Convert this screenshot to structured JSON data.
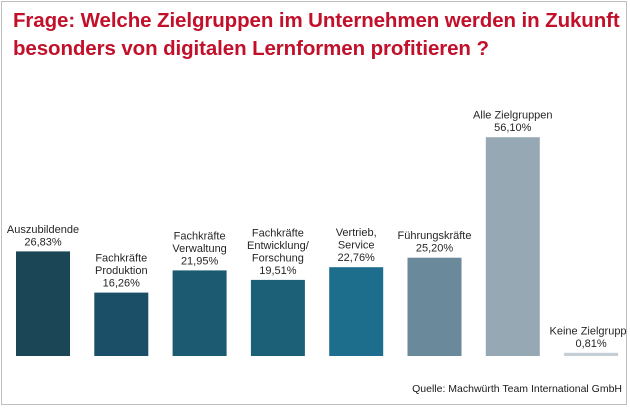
{
  "chart_data": {
    "type": "bar",
    "title_lines": [
      "Frage: Welche Zielgruppen im Unternehmen werden in Zukunft",
      "besonders von digitalen Lernformen profitieren ?"
    ],
    "categories": [
      [
        "Auszubildende"
      ],
      [
        "Fachkräfte",
        "Produktion"
      ],
      [
        "Fachkräfte",
        "Verwaltung"
      ],
      [
        "Fachkräfte",
        "Entwicklung/",
        "Forschung"
      ],
      [
        "Vertrieb,",
        "Service"
      ],
      [
        "Führungskräfte"
      ],
      [
        "Alle Zielgruppen"
      ],
      [
        "Keine Zielgruppe"
      ]
    ],
    "values": [
      26.83,
      16.26,
      21.95,
      19.51,
      22.76,
      25.2,
      56.1,
      0.81
    ],
    "value_labels": [
      "26,83%",
      "16,26%",
      "21,95%",
      "19,51%",
      "22,76%",
      "25,20%",
      "56,10%",
      "0,81%"
    ],
    "colors": [
      "#1b4655",
      "#1b4f67",
      "#1c5a72",
      "#1c6078",
      "#1d6e8c",
      "#6a8a9b",
      "#95a8b3",
      "#c3ced5"
    ],
    "ylim": [
      0,
      60
    ],
    "xlabel": "",
    "ylabel": "",
    "source": "Quelle: Machwürth Team International GmbH"
  }
}
